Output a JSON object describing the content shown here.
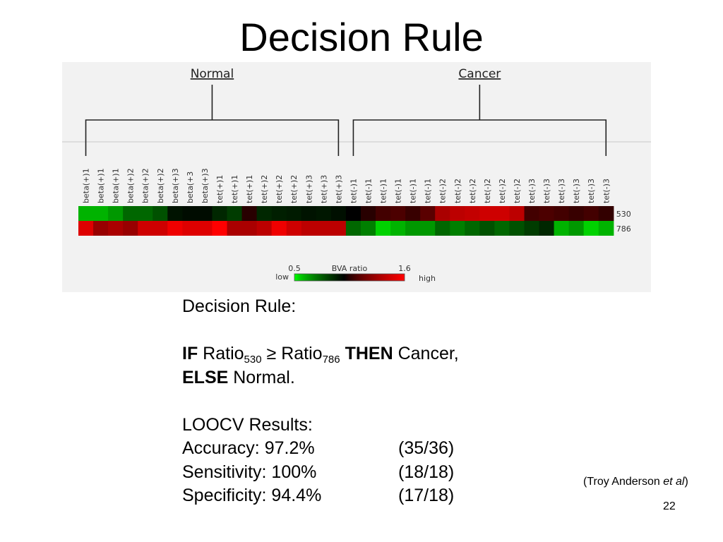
{
  "slide": {
    "title": "Decision Rule",
    "page_number": "22",
    "citation": {
      "prefix": "(Troy Anderson ",
      "italic": "et al",
      "suffix": ")"
    },
    "rule": {
      "heading": "Decision Rule:",
      "if": "IF",
      "ratio": "Ratio",
      "sub_530": "530",
      "geq": "≥",
      "sub_786": "786",
      "then": "THEN",
      "cancer": "Cancer,",
      "else": "ELSE",
      "normal": "Normal."
    },
    "results": {
      "heading": "LOOCV Results:",
      "rows": [
        {
          "label": "Accuracy: 97.2%",
          "fraction": "(35/36)"
        },
        {
          "label": "Sensitivity: 100%",
          "fraction": "(18/18)"
        },
        {
          "label": "Specificity: 94.4%",
          "fraction": "(17/18)"
        }
      ]
    }
  },
  "chart_data": {
    "type": "heatmap",
    "groups": [
      {
        "name": "Normal",
        "count": 18
      },
      {
        "name": "Cancer",
        "count": 18
      }
    ],
    "columns": [
      "beta(+)1",
      "beta(+)1",
      "beta(+)1",
      "beta(+)2",
      "beta(+)2",
      "beta(+)2",
      "beta(+)3",
      "beta(+3",
      "beta(+)3",
      "tet(+)1",
      "tet(+)1",
      "tet(+)1",
      "tet(+)2",
      "tet(+)2",
      "tet(+)2",
      "tet(+)3",
      "tet(+)3",
      "tet(+)3",
      "tet(-)1",
      "tet(-)1",
      "tet(-)1",
      "tet(-)1",
      "tet(-)1",
      "tet(-)1",
      "tet(-)2",
      "tet(-)2",
      "tet(-)2",
      "tet(-)2",
      "tet(-)2",
      "tet(-)2",
      "tet(-)3",
      "tet(-)3",
      "tet(-)3",
      "tet(-)3",
      "tet(-)3",
      "tet(-)3"
    ],
    "rows": [
      {
        "name": "530",
        "values": [
          0.6,
          0.6,
          0.65,
          0.75,
          0.75,
          0.8,
          0.95,
          0.97,
          0.97,
          0.9,
          0.85,
          1.05,
          0.9,
          0.92,
          0.93,
          0.95,
          0.94,
          0.96,
          1.0,
          1.05,
          1.1,
          1.12,
          1.08,
          1.15,
          1.35,
          1.4,
          1.42,
          1.45,
          1.45,
          1.4,
          1.1,
          1.12,
          1.1,
          1.08,
          1.1,
          1.07
        ]
      },
      {
        "name": "786",
        "values": [
          1.5,
          1.3,
          1.35,
          1.3,
          1.45,
          1.45,
          1.55,
          1.5,
          1.5,
          1.6,
          1.35,
          1.35,
          1.4,
          1.55,
          1.45,
          1.4,
          1.4,
          1.4,
          0.75,
          0.7,
          0.55,
          0.6,
          0.65,
          0.65,
          0.75,
          0.7,
          0.75,
          0.8,
          0.75,
          0.8,
          0.85,
          0.9,
          0.6,
          0.65,
          0.55,
          0.6
        ]
      }
    ],
    "color_scale": {
      "title": "BVA ratio",
      "min": 0.5,
      "max": 1.6,
      "min_label": "0.5",
      "max_label": "1.6",
      "low_label": "low",
      "high_label": "high",
      "colors": [
        "#00ff00",
        "#000000",
        "#ff0000"
      ]
    }
  }
}
